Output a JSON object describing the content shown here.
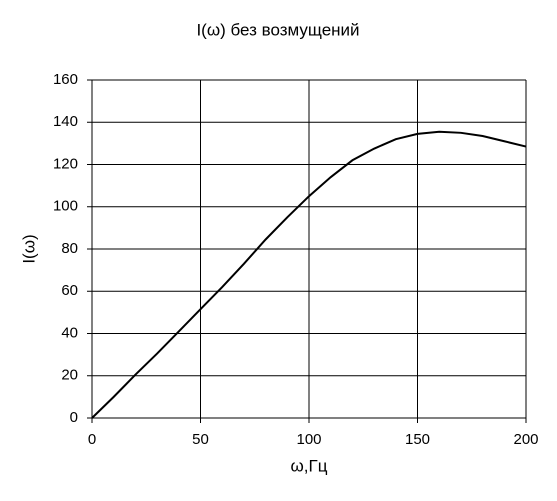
{
  "chart_data": {
    "type": "line",
    "title": "I(ω)  без возмущений",
    "x_label": "ω,Гц",
    "y_label": "I(ω)",
    "x": [
      0,
      10,
      20,
      30,
      40,
      50,
      60,
      70,
      80,
      90,
      100,
      110,
      120,
      130,
      140,
      150,
      160,
      170,
      180,
      190,
      200
    ],
    "series": [
      {
        "color": "#000000",
        "values": [
          0,
          10,
          20.5,
          30.5,
          41,
          51.5,
          62,
          73,
          84.5,
          95,
          105,
          114,
          122,
          127.5,
          132,
          134.5,
          135.5,
          135,
          133.5,
          131,
          128.5
        ]
      }
    ],
    "xlim": [
      0,
      200
    ],
    "xticks": [
      0,
      50,
      100,
      150,
      200
    ],
    "ylim": [
      0,
      160
    ],
    "yticks": [
      0,
      20,
      40,
      60,
      80,
      100,
      120,
      140,
      160
    ],
    "grid": true
  }
}
